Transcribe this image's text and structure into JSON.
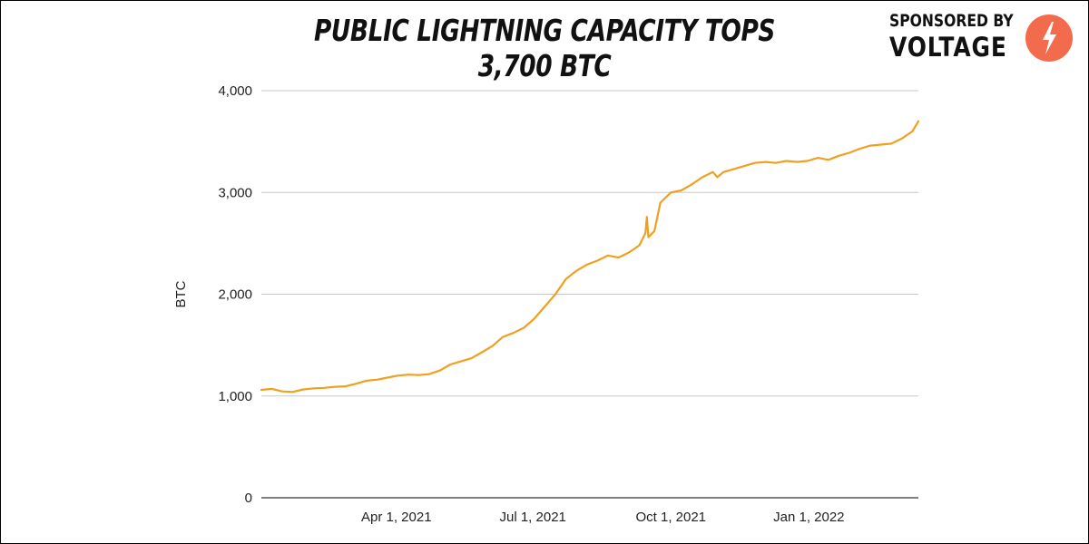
{
  "header": {
    "title": "PUBLIC LIGHTNING CAPACITY TOPS 3,700 BTC",
    "sponsor_label": "SPONSORED BY",
    "sponsor_brand": "VOLTAGE",
    "sponsor_logo_icon": "lightning-bolt-icon"
  },
  "colors": {
    "line": "#f0a020",
    "grid": "#c8c8c8",
    "axis": "#333333",
    "logo": "#f26b4d"
  },
  "chart_data": {
    "type": "line",
    "title": "PUBLIC LIGHTNING CAPACITY TOPS 3,700 BTC",
    "xlabel": "",
    "ylabel": "BTC",
    "ylim": [
      0,
      4000
    ],
    "yticks": [
      0,
      1000,
      2000,
      3000,
      4000
    ],
    "ytick_labels": [
      "0",
      "1,000",
      "2,000",
      "3,000",
      "4,000"
    ],
    "xlim": [
      "2021-01-01",
      "2022-03-15"
    ],
    "xticks": [
      "2021-04-01",
      "2021-07-01",
      "2021-10-01",
      "2022-01-01"
    ],
    "xtick_labels": [
      "Apr 1, 2021",
      "Jul 1, 2021",
      "Oct 1, 2021",
      "Jan 1, 2022"
    ],
    "grid": true,
    "legend": "none",
    "series": [
      {
        "name": "Public Lightning Capacity (BTC)",
        "x": [
          "2021-01-01",
          "2021-01-08",
          "2021-01-15",
          "2021-01-22",
          "2021-01-29",
          "2021-02-05",
          "2021-02-12",
          "2021-02-19",
          "2021-02-26",
          "2021-03-05",
          "2021-03-12",
          "2021-03-19",
          "2021-03-26",
          "2021-04-02",
          "2021-04-09",
          "2021-04-16",
          "2021-04-23",
          "2021-04-30",
          "2021-05-07",
          "2021-05-14",
          "2021-05-21",
          "2021-05-28",
          "2021-06-04",
          "2021-06-11",
          "2021-06-18",
          "2021-06-25",
          "2021-07-02",
          "2021-07-09",
          "2021-07-16",
          "2021-07-23",
          "2021-07-30",
          "2021-08-06",
          "2021-08-13",
          "2021-08-20",
          "2021-08-27",
          "2021-09-03",
          "2021-09-10",
          "2021-09-14",
          "2021-09-15",
          "2021-09-16",
          "2021-09-20",
          "2021-09-24",
          "2021-10-01",
          "2021-10-08",
          "2021-10-15",
          "2021-10-22",
          "2021-10-29",
          "2021-11-01",
          "2021-11-05",
          "2021-11-12",
          "2021-11-19",
          "2021-11-26",
          "2021-12-03",
          "2021-12-10",
          "2021-12-17",
          "2021-12-24",
          "2021-12-31",
          "2022-01-07",
          "2022-01-14",
          "2022-01-21",
          "2022-01-28",
          "2022-02-04",
          "2022-02-11",
          "2022-02-18",
          "2022-02-25",
          "2022-03-04",
          "2022-03-11",
          "2022-03-15"
        ],
        "y": [
          1060,
          1070,
          1045,
          1040,
          1065,
          1075,
          1080,
          1090,
          1095,
          1120,
          1150,
          1160,
          1180,
          1200,
          1210,
          1205,
          1215,
          1250,
          1310,
          1340,
          1370,
          1430,
          1490,
          1580,
          1620,
          1670,
          1760,
          1880,
          2000,
          2150,
          2230,
          2290,
          2330,
          2380,
          2360,
          2410,
          2480,
          2600,
          2760,
          2560,
          2620,
          2900,
          3000,
          3020,
          3080,
          3150,
          3200,
          3150,
          3200,
          3230,
          3260,
          3290,
          3300,
          3290,
          3310,
          3300,
          3310,
          3340,
          3320,
          3360,
          3390,
          3430,
          3460,
          3470,
          3480,
          3530,
          3600,
          3700
        ]
      }
    ]
  }
}
